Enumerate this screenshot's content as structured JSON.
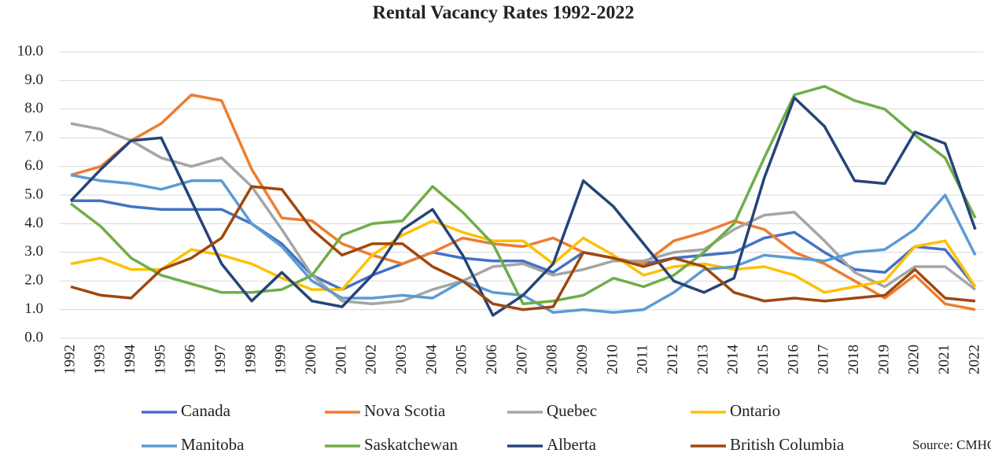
{
  "chart_data": {
    "type": "line",
    "title": "Rental Vacancy Rates 1992-2022",
    "categories": [
      "1992",
      "1993",
      "1994",
      "1995",
      "1996",
      "1997",
      "1998",
      "1999",
      "2000",
      "2001",
      "2002",
      "2003",
      "2004",
      "2005",
      "2006",
      "2007",
      "2008",
      "2009",
      "2010",
      "2011",
      "2012",
      "2013",
      "2014",
      "2015",
      "2016",
      "2017",
      "2018",
      "2019",
      "2020",
      "2021",
      "2022"
    ],
    "series": [
      {
        "name": "Canada",
        "color": "#4472c4",
        "values": [
          4.8,
          4.8,
          4.6,
          4.5,
          4.5,
          4.5,
          4.0,
          3.3,
          2.2,
          1.7,
          2.2,
          2.6,
          3.0,
          2.8,
          2.7,
          2.7,
          2.3,
          3.0,
          2.8,
          2.6,
          2.8,
          2.9,
          3.0,
          3.5,
          3.7,
          3.0,
          2.4,
          2.3,
          3.2,
          3.1,
          1.8
        ]
      },
      {
        "name": "Nova Scotia",
        "color": "#ed7d31",
        "values": [
          5.7,
          6.0,
          6.9,
          7.5,
          8.5,
          8.3,
          5.9,
          4.2,
          4.1,
          3.3,
          2.9,
          2.6,
          3.0,
          3.5,
          3.3,
          3.2,
          3.5,
          3.0,
          2.8,
          2.6,
          3.4,
          3.7,
          4.1,
          3.8,
          3.0,
          2.6,
          2.0,
          1.4,
          2.2,
          1.2,
          1.0
        ]
      },
      {
        "name": "Quebec",
        "color": "#a5a5a5",
        "values": [
          7.5,
          7.3,
          6.9,
          6.3,
          6.0,
          6.3,
          5.3,
          3.8,
          2.2,
          1.3,
          1.2,
          1.3,
          1.7,
          2.0,
          2.5,
          2.6,
          2.2,
          2.4,
          2.7,
          2.7,
          3.0,
          3.1,
          3.8,
          4.3,
          4.4,
          3.4,
          2.3,
          1.8,
          2.5,
          2.5,
          1.7
        ]
      },
      {
        "name": "Ontario",
        "color": "#ffc000",
        "values": [
          2.6,
          2.8,
          2.4,
          2.4,
          3.1,
          2.9,
          2.6,
          2.1,
          1.7,
          1.7,
          2.9,
          3.6,
          4.1,
          3.7,
          3.4,
          3.4,
          2.6,
          3.5,
          2.9,
          2.2,
          2.5,
          2.6,
          2.4,
          2.5,
          2.2,
          1.6,
          1.8,
          2.0,
          3.2,
          3.4,
          1.8
        ]
      },
      {
        "name": "Manitoba",
        "color": "#5b9bd5",
        "values": [
          5.7,
          5.5,
          5.4,
          5.2,
          5.5,
          5.5,
          4.0,
          3.2,
          2.0,
          1.4,
          1.4,
          1.5,
          1.4,
          2.0,
          1.6,
          1.5,
          0.9,
          1.0,
          0.9,
          1.0,
          1.6,
          2.4,
          2.5,
          2.9,
          2.8,
          2.7,
          3.0,
          3.1,
          3.8,
          5.0,
          2.9
        ]
      },
      {
        "name": "Saskatchewan",
        "color": "#70ad47",
        "values": [
          4.7,
          3.9,
          2.8,
          2.2,
          1.9,
          1.6,
          1.6,
          1.7,
          2.2,
          3.6,
          4.0,
          4.1,
          5.3,
          4.4,
          3.3,
          1.2,
          1.3,
          1.5,
          2.1,
          1.8,
          2.2,
          3.0,
          4.0,
          6.3,
          8.5,
          8.8,
          8.3,
          8.0,
          7.1,
          6.3,
          4.2
        ]
      },
      {
        "name": "Alberta",
        "color": "#264478",
        "values": [
          4.8,
          5.9,
          6.9,
          7.0,
          4.8,
          2.6,
          1.3,
          2.3,
          1.3,
          1.1,
          2.2,
          3.8,
          4.5,
          2.9,
          0.8,
          1.5,
          2.6,
          5.5,
          4.6,
          3.3,
          2.0,
          1.6,
          2.1,
          5.6,
          8.4,
          7.4,
          5.5,
          5.4,
          7.2,
          6.8,
          3.8
        ]
      },
      {
        "name": "British Columbia",
        "color": "#9e480e",
        "values": [
          1.8,
          1.5,
          1.4,
          2.4,
          2.8,
          3.5,
          5.3,
          5.2,
          3.8,
          2.9,
          3.3,
          3.3,
          2.5,
          2.0,
          1.2,
          1.0,
          1.1,
          3.0,
          2.8,
          2.5,
          2.8,
          2.5,
          1.6,
          1.3,
          1.4,
          1.3,
          1.4,
          1.5,
          2.4,
          1.4,
          1.3
        ]
      }
    ],
    "ylim": [
      0,
      10
    ],
    "yticks": [
      {
        "value": 0,
        "label": "0.0"
      },
      {
        "value": 1,
        "label": "1.0"
      },
      {
        "value": 2,
        "label": "2.0"
      },
      {
        "value": 3,
        "label": "3.0"
      },
      {
        "value": 4,
        "label": "4.0"
      },
      {
        "value": 5,
        "label": "5.0"
      },
      {
        "value": 6,
        "label": "6.0"
      },
      {
        "value": 7,
        "label": "7.0"
      },
      {
        "value": 8,
        "label": "8.0"
      },
      {
        "value": 9,
        "label": "9.0"
      },
      {
        "value": 10,
        "label": "10.0"
      }
    ],
    "grid": true,
    "legend": "bottom",
    "source": "Source: CMHC"
  }
}
